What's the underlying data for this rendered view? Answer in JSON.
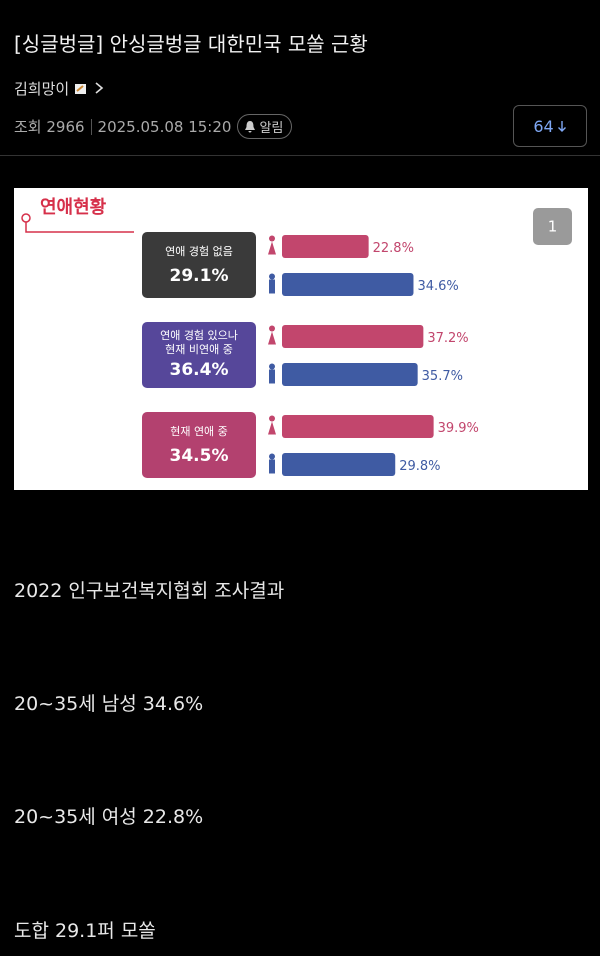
{
  "post": {
    "title": "[싱글벙글] 안싱글벙글 대한민국 모쏠 근황",
    "author": "김희망이",
    "views": "조회 2966",
    "date": "2025.05.08 15:20",
    "alarm": "알림",
    "comment_count": "64"
  },
  "image": {
    "title": "연애현황",
    "page": "1",
    "groups": [
      {
        "label": [
          "연애 경험 없음"
        ],
        "total": "29.1%",
        "box_color": "#3a3a3a"
      },
      {
        "label": [
          "연애 경험 있으나",
          "현재 비연애 중"
        ],
        "total": "36.4%",
        "box_color": "#56479a"
      },
      {
        "label": [
          "현재 연애 중"
        ],
        "total": "34.5%",
        "box_color": "#b3416f"
      }
    ],
    "female_color": "#c2466d",
    "male_color": "#3f5ba3",
    "female_values": [
      22.8,
      37.2,
      39.9
    ],
    "female_value_labels": [
      "22.8%",
      "37.2%",
      "39.9%"
    ],
    "male_values": [
      34.6,
      35.7,
      29.8
    ],
    "male_value_labels": [
      "34.6%",
      "35.7%",
      "29.8%"
    ]
  },
  "body": [
    "2022 인구보건복지협회 조사결과",
    "20~35세 남성 34.6%",
    "20~35세 여성 22.8%",
    "도합 29.1퍼 모쏠"
  ]
}
